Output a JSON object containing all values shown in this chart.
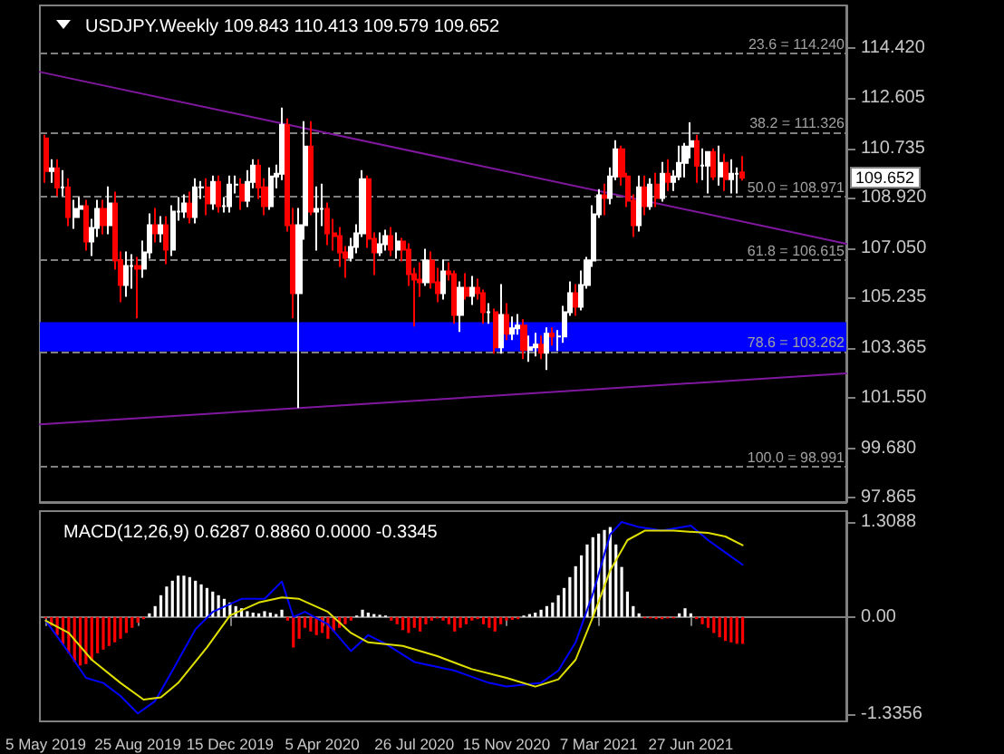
{
  "chart_data": [
    {
      "type": "candlestick",
      "title": "USDJPY.Weekly 109.843 110.413 109.579 109.652",
      "x": [
        "2019-05-05",
        "2019-05-12",
        "2019-05-19",
        "2019-05-26",
        "2019-06-02",
        "2019-06-09",
        "2019-06-16",
        "2019-06-23",
        "2019-06-30",
        "2019-07-07",
        "2019-07-14",
        "2019-07-21",
        "2019-07-28",
        "2019-08-04",
        "2019-08-11",
        "2019-08-18",
        "2019-08-25",
        "2019-09-01",
        "2019-09-08",
        "2019-09-15",
        "2019-09-22",
        "2019-09-29",
        "2019-10-06",
        "2019-10-13",
        "2019-10-20",
        "2019-10-27",
        "2019-11-03",
        "2019-11-10",
        "2019-11-17",
        "2019-11-24",
        "2019-12-01",
        "2019-12-08",
        "2019-12-15",
        "2019-12-22",
        "2019-12-29",
        "2020-01-05",
        "2020-01-12",
        "2020-01-19",
        "2020-01-26",
        "2020-02-02",
        "2020-02-09",
        "2020-02-16",
        "2020-02-23",
        "2020-03-01",
        "2020-03-08",
        "2020-03-15",
        "2020-03-22",
        "2020-03-29",
        "2020-04-05",
        "2020-04-12",
        "2020-04-19",
        "2020-04-26",
        "2020-05-03",
        "2020-05-10",
        "2020-05-17",
        "2020-05-24",
        "2020-05-31",
        "2020-06-07",
        "2020-06-14",
        "2020-06-21",
        "2020-06-28",
        "2020-07-05",
        "2020-07-12",
        "2020-07-19",
        "2020-07-26",
        "2020-08-02",
        "2020-08-09",
        "2020-08-16",
        "2020-08-23",
        "2020-08-30",
        "2020-09-06",
        "2020-09-13",
        "2020-09-20",
        "2020-09-27",
        "2020-10-04",
        "2020-10-11",
        "2020-10-18",
        "2020-10-25",
        "2020-11-01",
        "2020-11-08",
        "2020-11-15",
        "2020-11-22",
        "2020-11-29",
        "2020-12-06",
        "2020-12-13",
        "2020-12-20",
        "2020-12-27",
        "2021-01-03",
        "2021-01-10",
        "2021-01-17",
        "2021-01-24",
        "2021-01-31",
        "2021-02-07",
        "2021-02-14",
        "2021-02-21",
        "2021-02-28",
        "2021-03-07",
        "2021-03-14",
        "2021-03-21",
        "2021-03-28",
        "2021-04-04",
        "2021-04-11",
        "2021-04-18",
        "2021-04-25",
        "2021-05-02",
        "2021-05-09",
        "2021-05-16",
        "2021-05-23",
        "2021-05-30",
        "2021-06-06",
        "2021-06-13",
        "2021-06-20",
        "2021-06-27",
        "2021-07-04",
        "2021-07-11",
        "2021-07-18",
        "2021-07-25",
        "2021-08-01",
        "2021-08-08",
        "2021-08-15",
        "2021-08-22",
        "2021-08-29"
      ],
      "ohlc": [
        [
          111.1,
          111.2,
          109.5,
          109.9
        ],
        [
          109.9,
          110.3,
          109.5,
          110.0
        ],
        [
          110.0,
          110.3,
          109.0,
          109.3
        ],
        [
          109.3,
          109.9,
          109.0,
          109.3
        ],
        [
          109.3,
          109.6,
          107.9,
          108.2
        ],
        [
          108.2,
          108.8,
          107.8,
          108.5
        ],
        [
          108.5,
          108.9,
          108.2,
          108.6
        ],
        [
          108.6,
          108.8,
          107.0,
          107.3
        ],
        [
          107.3,
          108.1,
          106.8,
          107.8
        ],
        [
          107.8,
          108.8,
          107.5,
          108.5
        ],
        [
          108.5,
          108.8,
          107.6,
          107.9
        ],
        [
          107.9,
          109.3,
          107.6,
          108.7
        ],
        [
          108.7,
          109.1,
          106.3,
          106.6
        ],
        [
          106.6,
          106.9,
          105.1,
          105.7
        ],
        [
          105.7,
          106.9,
          105.3,
          106.4
        ],
        [
          106.4,
          106.8,
          105.6,
          106.4
        ],
        [
          106.4,
          106.7,
          104.5,
          106.3
        ],
        [
          106.3,
          107.3,
          106.0,
          106.9
        ],
        [
          106.9,
          108.3,
          106.7,
          107.9
        ],
        [
          107.9,
          108.5,
          107.3,
          107.6
        ],
        [
          107.6,
          108.2,
          107.3,
          107.9
        ],
        [
          107.9,
          108.2,
          106.5,
          107.0
        ],
        [
          107.0,
          108.6,
          106.8,
          108.4
        ],
        [
          108.4,
          108.9,
          108.1,
          108.4
        ],
        [
          108.4,
          109.0,
          108.2,
          108.7
        ],
        [
          108.7,
          109.1,
          108.0,
          108.2
        ],
        [
          108.2,
          109.6,
          108.0,
          109.3
        ],
        [
          109.3,
          109.5,
          108.9,
          109.3
        ],
        [
          109.3,
          109.6,
          108.3,
          108.7
        ],
        [
          108.7,
          109.7,
          108.5,
          109.5
        ],
        [
          109.5,
          109.7,
          108.4,
          108.6
        ],
        [
          108.6,
          108.9,
          108.4,
          108.6
        ],
        [
          108.6,
          109.7,
          108.4,
          109.4
        ],
        [
          109.4,
          109.7,
          109.1,
          109.4
        ],
        [
          109.4,
          109.6,
          108.5,
          108.8
        ],
        [
          108.8,
          109.9,
          108.6,
          109.5
        ],
        [
          109.5,
          110.3,
          109.3,
          110.1
        ],
        [
          110.1,
          110.3,
          108.9,
          109.3
        ],
        [
          109.3,
          109.6,
          108.3,
          108.6
        ],
        [
          108.6,
          110.0,
          108.5,
          109.7
        ],
        [
          109.7,
          110.1,
          109.3,
          109.8
        ],
        [
          109.8,
          112.2,
          109.6,
          111.6
        ],
        [
          111.6,
          111.8,
          107.7,
          107.9
        ],
        [
          107.9,
          108.5,
          104.5,
          105.4
        ],
        [
          105.4,
          108.5,
          101.2,
          107.9
        ],
        [
          107.9,
          111.7,
          107.4,
          110.8
        ],
        [
          110.8,
          111.7,
          108.3,
          108.4
        ],
        [
          108.4,
          109.3,
          107.0,
          108.5
        ],
        [
          108.5,
          109.4,
          107.9,
          108.5
        ],
        [
          108.5,
          108.7,
          107.2,
          107.6
        ],
        [
          107.6,
          108.1,
          107.0,
          107.5
        ],
        [
          107.5,
          107.8,
          106.4,
          106.9
        ],
        [
          106.9,
          107.1,
          106.0,
          106.7
        ],
        [
          106.7,
          107.4,
          106.6,
          107.1
        ],
        [
          107.1,
          107.9,
          106.9,
          107.6
        ],
        [
          107.6,
          109.9,
          107.5,
          109.6
        ],
        [
          109.6,
          109.7,
          107.1,
          107.4
        ],
        [
          107.4,
          107.6,
          106.1,
          106.9
        ],
        [
          106.9,
          107.6,
          106.8,
          107.2
        ],
        [
          107.2,
          107.7,
          107.0,
          107.5
        ],
        [
          107.5,
          107.8,
          106.8,
          107.0
        ],
        [
          107.0,
          107.6,
          106.7,
          107.3
        ],
        [
          107.3,
          107.4,
          106.6,
          107.0
        ],
        [
          107.0,
          107.2,
          105.7,
          106.1
        ],
        [
          106.1,
          106.3,
          104.2,
          105.9
        ],
        [
          105.9,
          106.5,
          105.3,
          105.8
        ],
        [
          105.8,
          107.0,
          105.7,
          106.6
        ],
        [
          106.6,
          106.9,
          105.6,
          105.8
        ],
        [
          105.8,
          106.3,
          105.1,
          105.4
        ],
        [
          105.4,
          106.6,
          105.2,
          106.2
        ],
        [
          106.2,
          106.5,
          105.9,
          106.1
        ],
        [
          106.1,
          106.2,
          104.3,
          104.6
        ],
        [
          104.6,
          105.8,
          104.0,
          105.6
        ],
        [
          105.6,
          106.1,
          105.2,
          105.3
        ],
        [
          105.3,
          106.0,
          105.0,
          105.6
        ],
        [
          105.6,
          105.9,
          105.2,
          105.4
        ],
        [
          105.4,
          105.5,
          104.3,
          104.7
        ],
        [
          104.7,
          105.0,
          104.3,
          104.7
        ],
        [
          104.7,
          104.8,
          103.2,
          103.4
        ],
        [
          103.4,
          105.7,
          103.2,
          104.6
        ],
        [
          104.6,
          105.0,
          103.7,
          103.9
        ],
        [
          103.9,
          104.5,
          103.7,
          104.1
        ],
        [
          104.1,
          104.6,
          103.9,
          104.2
        ],
        [
          104.2,
          104.4,
          103.0,
          103.3
        ],
        [
          103.3,
          103.8,
          102.9,
          103.4
        ],
        [
          103.4,
          103.9,
          103.1,
          103.5
        ],
        [
          103.5,
          103.8,
          103.0,
          103.2
        ],
        [
          103.2,
          104.1,
          102.6,
          103.9
        ],
        [
          103.9,
          104.1,
          103.5,
          103.8
        ],
        [
          103.8,
          104.0,
          103.3,
          103.8
        ],
        [
          103.8,
          104.9,
          103.6,
          104.7
        ],
        [
          104.7,
          105.8,
          104.6,
          105.4
        ],
        [
          105.4,
          105.7,
          104.6,
          104.9
        ],
        [
          104.9,
          106.2,
          104.8,
          105.7
        ],
        [
          105.7,
          106.7,
          105.6,
          106.6
        ],
        [
          106.6,
          108.6,
          106.4,
          108.3
        ],
        [
          108.3,
          109.2,
          108.2,
          109.0
        ],
        [
          109.0,
          109.4,
          108.3,
          108.9
        ],
        [
          108.9,
          110.0,
          108.7,
          109.7
        ],
        [
          109.7,
          111.0,
          109.6,
          110.7
        ],
        [
          110.7,
          110.8,
          109.4,
          109.7
        ],
        [
          109.7,
          109.8,
          108.6,
          108.8
        ],
        [
          108.8,
          109.0,
          107.5,
          107.9
        ],
        [
          107.9,
          109.7,
          107.7,
          109.3
        ],
        [
          109.3,
          109.7,
          108.3,
          108.6
        ],
        [
          108.6,
          109.6,
          108.5,
          109.4
        ],
        [
          109.4,
          109.8,
          108.6,
          108.9
        ],
        [
          108.9,
          110.2,
          108.8,
          109.8
        ],
        [
          109.8,
          110.3,
          109.2,
          109.5
        ],
        [
          109.5,
          109.9,
          109.2,
          109.7
        ],
        [
          109.7,
          110.8,
          109.6,
          110.2
        ],
        [
          110.2,
          110.9,
          109.7,
          110.8
        ],
        [
          110.8,
          111.66,
          110.4,
          111.0
        ],
        [
          111.0,
          111.2,
          109.5,
          110.1
        ],
        [
          110.1,
          110.7,
          109.6,
          110.1
        ],
        [
          110.1,
          110.6,
          109.1,
          110.6
        ],
        [
          110.6,
          110.7,
          109.6,
          109.7
        ],
        [
          109.7,
          110.8,
          109.4,
          110.2
        ],
        [
          110.2,
          110.5,
          109.2,
          109.6
        ],
        [
          109.6,
          110.3,
          109.1,
          109.8
        ],
        [
          109.8,
          110.0,
          109.1,
          109.8
        ],
        [
          109.843,
          110.413,
          109.579,
          109.652
        ]
      ],
      "series": [
        {
          "type": "line",
          "color": "#80189f",
          "x": [
            "2019-04-28",
            "2022-01-02"
          ],
          "values": [
            113.55,
            107.22
          ]
        },
        {
          "type": "line",
          "color": "#80189f",
          "x": [
            "2019-04-28",
            "2022-01-02"
          ],
          "values": [
            100.56,
            102.44
          ]
        }
      ],
      "xlim": [
        "2019-04-28",
        "2022-01-02"
      ],
      "ylim": [
        97.7,
        116.0
      ],
      "yticks": [
        {
          "value": 114.42,
          "label": "114.420"
        },
        112.605,
        110.735,
        {
          "value": 108.92,
          "label": "108.920"
        },
        {
          "value": 107.05,
          "label": "107.050"
        },
        105.235,
        103.365,
        {
          "value": 101.55,
          "label": "101.550"
        },
        {
          "value": 99.68,
          "label": "99.680"
        },
        97.865
      ],
      "ref_lines": [
        {
          "axis": "y",
          "value": 114.24,
          "label": "23.6 = 114.240",
          "color": "#808080",
          "line_style": "dashed"
        },
        {
          "axis": "y",
          "value": 111.326,
          "label": "38.2 = 111.326",
          "color": "#808080",
          "line_style": "dashed"
        },
        {
          "axis": "y",
          "value": 108.971,
          "label": "50.0 = 108.971",
          "color": "#808080",
          "line_style": "dashed"
        },
        {
          "axis": "y",
          "value": 106.615,
          "label": "61.8 = 106.615",
          "color": "#808080",
          "line_style": "dashed"
        },
        {
          "axis": "y",
          "value": 103.262,
          "label": "78.6 = 103.262",
          "color": "#808080",
          "line_style": "dashed"
        },
        {
          "axis": "y",
          "value": 98.991,
          "label": "100.0 = 98.991",
          "color": "#808080",
          "line_style": "dashed"
        }
      ],
      "bands": [
        {
          "axis": "y",
          "from": 103.25,
          "to": 104.33,
          "color": "#0000ff"
        }
      ],
      "annotations": [
        "109.652"
      ],
      "tick_labels": "y"
    },
    {
      "type": "bar",
      "title": "MACD(12,26,9) 0.6287 0.8860 0.0000 -0.3345",
      "x": [
        "2019-05-05",
        "2019-05-12",
        "2019-05-19",
        "2019-05-26",
        "2019-06-02",
        "2019-06-09",
        "2019-06-16",
        "2019-06-23",
        "2019-06-30",
        "2019-07-07",
        "2019-07-14",
        "2019-07-21",
        "2019-07-28",
        "2019-08-04",
        "2019-08-11",
        "2019-08-18",
        "2019-08-25",
        "2019-09-01",
        "2019-09-08",
        "2019-09-15",
        "2019-09-22",
        "2019-09-29",
        "2019-10-06",
        "2019-10-13",
        "2019-10-20",
        "2019-10-27",
        "2019-11-03",
        "2019-11-10",
        "2019-11-17",
        "2019-11-24",
        "2019-12-01",
        "2019-12-08",
        "2019-12-15",
        "2019-12-22",
        "2019-12-29",
        "2020-01-05",
        "2020-01-12",
        "2020-01-19",
        "2020-01-26",
        "2020-02-02",
        "2020-02-09",
        "2020-02-16",
        "2020-02-23",
        "2020-03-01",
        "2020-03-08",
        "2020-03-15",
        "2020-03-22",
        "2020-03-29",
        "2020-04-05",
        "2020-04-12",
        "2020-04-19",
        "2020-04-26",
        "2020-05-03",
        "2020-05-10",
        "2020-05-17",
        "2020-05-24",
        "2020-05-31",
        "2020-06-07",
        "2020-06-14",
        "2020-06-21",
        "2020-06-28",
        "2020-07-05",
        "2020-07-12",
        "2020-07-19",
        "2020-07-26",
        "2020-08-02",
        "2020-08-09",
        "2020-08-16",
        "2020-08-23",
        "2020-08-30",
        "2020-09-06",
        "2020-09-13",
        "2020-09-20",
        "2020-09-27",
        "2020-10-04",
        "2020-10-11",
        "2020-10-18",
        "2020-10-25",
        "2020-11-01",
        "2020-11-08",
        "2020-11-15",
        "2020-11-22",
        "2020-11-29",
        "2020-12-06",
        "2020-12-13",
        "2020-12-20",
        "2020-12-27",
        "2021-01-03",
        "2021-01-10",
        "2021-01-17",
        "2021-01-24",
        "2021-01-31",
        "2021-02-07",
        "2021-02-14",
        "2021-02-21",
        "2021-02-28",
        "2021-03-07",
        "2021-03-14",
        "2021-03-21",
        "2021-03-28",
        "2021-04-04",
        "2021-04-11",
        "2021-04-18",
        "2021-04-25",
        "2021-05-02",
        "2021-05-09",
        "2021-05-16",
        "2021-05-23",
        "2021-05-30",
        "2021-06-06",
        "2021-06-13",
        "2021-06-20",
        "2021-06-27",
        "2021-07-04",
        "2021-07-11",
        "2021-07-18",
        "2021-07-25",
        "2021-08-01",
        "2021-08-08",
        "2021-08-15",
        "2021-08-22",
        "2021-08-29"
      ],
      "series": [
        {
          "type": "bar",
          "values": [
            -0.02,
            -0.12,
            -0.25,
            -0.38,
            -0.5,
            -0.62,
            -0.67,
            -0.65,
            -0.6,
            -0.5,
            -0.45,
            -0.4,
            -0.35,
            -0.3,
            -0.22,
            -0.15,
            -0.08,
            -0.03,
            0.05,
            0.15,
            0.3,
            0.42,
            0.5,
            0.57,
            0.57,
            0.55,
            0.5,
            0.45,
            0.4,
            0.35,
            0.3,
            0.25,
            0.2,
            0.15,
            0.12,
            0.08,
            0.06,
            0.05,
            0.08,
            0.06,
            0.04,
            0.1,
            -0.05,
            -0.42,
            -0.3,
            -0.15,
            -0.2,
            -0.25,
            -0.22,
            -0.3,
            -0.2,
            -0.15,
            -0.1,
            -0.05,
            0.02,
            0.1,
            0.06,
            0.04,
            0.03,
            0.02,
            -0.05,
            -0.1,
            -0.18,
            -0.22,
            -0.15,
            -0.2,
            -0.1,
            -0.05,
            -0.02,
            -0.05,
            -0.1,
            -0.2,
            -0.15,
            -0.1,
            -0.05,
            -0.03,
            -0.1,
            -0.15,
            -0.2,
            -0.1,
            -0.05,
            -0.04,
            -0.03,
            0.02,
            0.04,
            0.06,
            0.1,
            0.15,
            0.2,
            0.3,
            0.4,
            0.55,
            0.7,
            0.85,
            1.0,
            1.1,
            1.15,
            1.2,
            1.24,
            1.0,
            0.69,
            0.35,
            0.15,
            0.05,
            -0.02,
            -0.02,
            -0.03,
            -0.03,
            -0.02,
            -0.02,
            0.05,
            0.12,
            0.05,
            -0.03,
            -0.1,
            -0.15,
            -0.22,
            -0.28,
            -0.33,
            -0.35,
            -0.37,
            -0.37
          ],
          "colors": [
            "#ff0000",
            "#ff0000",
            "#ff0000",
            "#ff0000",
            "#ff0000",
            "#ff0000",
            "#ff0000",
            "#ff0000",
            "#ff0000",
            "#ff0000",
            "#ff0000",
            "#ff0000",
            "#ff0000",
            "#ff0000",
            "#ff0000",
            "#ff0000",
            "#ff0000",
            "#ff0000",
            "#ffffff",
            "#ffffff",
            "#ffffff",
            "#ffffff",
            "#ffffff",
            "#ffffff",
            "#ffffff",
            "#ffffff",
            "#ffffff",
            "#ffffff",
            "#ffffff",
            "#ffffff",
            "#ffffff",
            "#ffffff",
            "#ffffff",
            "#ffffff",
            "#ffffff",
            "#ffffff",
            "#ffffff",
            "#ffffff",
            "#ffffff",
            "#ffffff",
            "#ffffff",
            "#ffffff",
            "#ff0000",
            "#ff0000",
            "#ff0000",
            "#ff0000",
            "#ff0000",
            "#ff0000",
            "#ff0000",
            "#ff0000",
            "#ff0000",
            "#ff0000",
            "#ff0000",
            "#ff0000",
            "#ffffff",
            "#ffffff",
            "#ffffff",
            "#ffffff",
            "#ffffff",
            "#ffffff",
            "#ff0000",
            "#ff0000",
            "#ff0000",
            "#ff0000",
            "#ff0000",
            "#ff0000",
            "#ff0000",
            "#ff0000",
            "#ff0000",
            "#ff0000",
            "#ff0000",
            "#ff0000",
            "#ff0000",
            "#ff0000",
            "#ff0000",
            "#ff0000",
            "#ff0000",
            "#ff0000",
            "#ff0000",
            "#ff0000",
            "#ff0000",
            "#ff0000",
            "#ff0000",
            "#ffffff",
            "#ffffff",
            "#ffffff",
            "#ffffff",
            "#ffffff",
            "#ffffff",
            "#ffffff",
            "#ffffff",
            "#ffffff",
            "#ffffff",
            "#ffffff",
            "#ffffff",
            "#ffffff",
            "#ffffff",
            "#ffffff",
            "#ffffff",
            "#ffffff",
            "#ffffff",
            "#ffffff",
            "#ffffff",
            "#ffffff",
            "#ff0000",
            "#ff0000",
            "#ff0000",
            "#ff0000",
            "#ff0000",
            "#ff0000",
            "#ffffff",
            "#ffffff",
            "#ffffff",
            "#ff0000",
            "#ff0000",
            "#ff0000",
            "#ff0000",
            "#ff0000",
            "#ff0000",
            "#ff0000",
            "#ff0000",
            "#ff0000"
          ]
        },
        {
          "type": "line",
          "color": "#0000ff",
          "x": [
            "2019-05-05",
            "2019-06-02",
            "2019-06-23",
            "2019-07-14",
            "2019-08-04",
            "2019-08-25",
            "2019-09-15",
            "2019-10-06",
            "2019-11-03",
            "2019-11-24",
            "2019-12-29",
            "2020-01-26",
            "2020-02-16",
            "2020-03-01",
            "2020-03-15",
            "2020-04-12",
            "2020-05-10",
            "2020-05-31",
            "2020-06-21",
            "2020-07-26",
            "2020-09-13",
            "2020-10-25",
            "2020-11-15",
            "2020-12-27",
            "2021-01-17",
            "2021-02-07",
            "2021-02-28",
            "2021-03-21",
            "2021-04-04",
            "2021-04-25",
            "2021-05-23",
            "2021-06-27",
            "2021-07-18",
            "2021-08-08",
            "2021-08-29"
          ],
          "values": [
            -0.05,
            -0.49,
            -0.84,
            -0.91,
            -1.09,
            -1.33,
            -1.16,
            -0.74,
            -0.17,
            0.07,
            0.25,
            0.25,
            0.49,
            0.0,
            0.07,
            -0.1,
            -0.47,
            -0.25,
            -0.37,
            -0.62,
            -0.74,
            -0.91,
            -0.96,
            -0.91,
            -0.74,
            -0.35,
            0.32,
            1.14,
            1.31,
            1.24,
            1.19,
            1.26,
            1.06,
            0.89,
            0.72
          ]
        },
        {
          "type": "line",
          "color": "#e0e000",
          "x": [
            "2019-05-05",
            "2019-06-02",
            "2019-06-30",
            "2019-08-04",
            "2019-09-01",
            "2019-09-22",
            "2019-10-13",
            "2019-11-17",
            "2019-12-15",
            "2020-01-19",
            "2020-02-16",
            "2020-03-08",
            "2020-04-12",
            "2020-05-10",
            "2020-05-31",
            "2020-07-12",
            "2020-08-23",
            "2020-10-04",
            "2020-11-15",
            "2020-12-20",
            "2021-01-17",
            "2021-02-07",
            "2021-02-28",
            "2021-03-21",
            "2021-04-11",
            "2021-05-02",
            "2021-06-06",
            "2021-07-18",
            "2021-08-08",
            "2021-08-29"
          ],
          "values": [
            -0.05,
            -0.22,
            -0.59,
            -0.91,
            -1.14,
            -1.11,
            -0.91,
            -0.42,
            0.02,
            0.2,
            0.27,
            0.25,
            0.07,
            -0.22,
            -0.35,
            -0.4,
            -0.54,
            -0.72,
            -0.84,
            -0.96,
            -0.86,
            -0.59,
            0.0,
            0.64,
            1.06,
            1.19,
            1.19,
            1.16,
            1.11,
            0.99
          ]
        }
      ],
      "xlim": [
        "2019-04-28",
        "2022-01-02"
      ],
      "xticks": [
        {
          "value": "2019-05-05",
          "label": "5 May 2019"
        },
        {
          "value": "2019-08-25",
          "label": "25 Aug 2019"
        },
        {
          "value": "2019-12-15",
          "label": "15 Dec 2019"
        },
        {
          "value": "2020-04-05",
          "label": "5 Apr 2020"
        },
        {
          "value": "2020-07-26",
          "label": "26 Jul 2020"
        },
        {
          "value": "2020-11-15",
          "label": "15 Nov 2020"
        },
        {
          "value": "2021-03-07",
          "label": "7 Mar 2021"
        },
        {
          "value": "2021-06-27",
          "label": "27 Jun 2021"
        }
      ],
      "ylim": [
        -1.44,
        1.46
      ],
      "yticks": [
        1.3088,
        {
          "value": 0,
          "label": "0.00"
        },
        -1.3356
      ]
    }
  ]
}
